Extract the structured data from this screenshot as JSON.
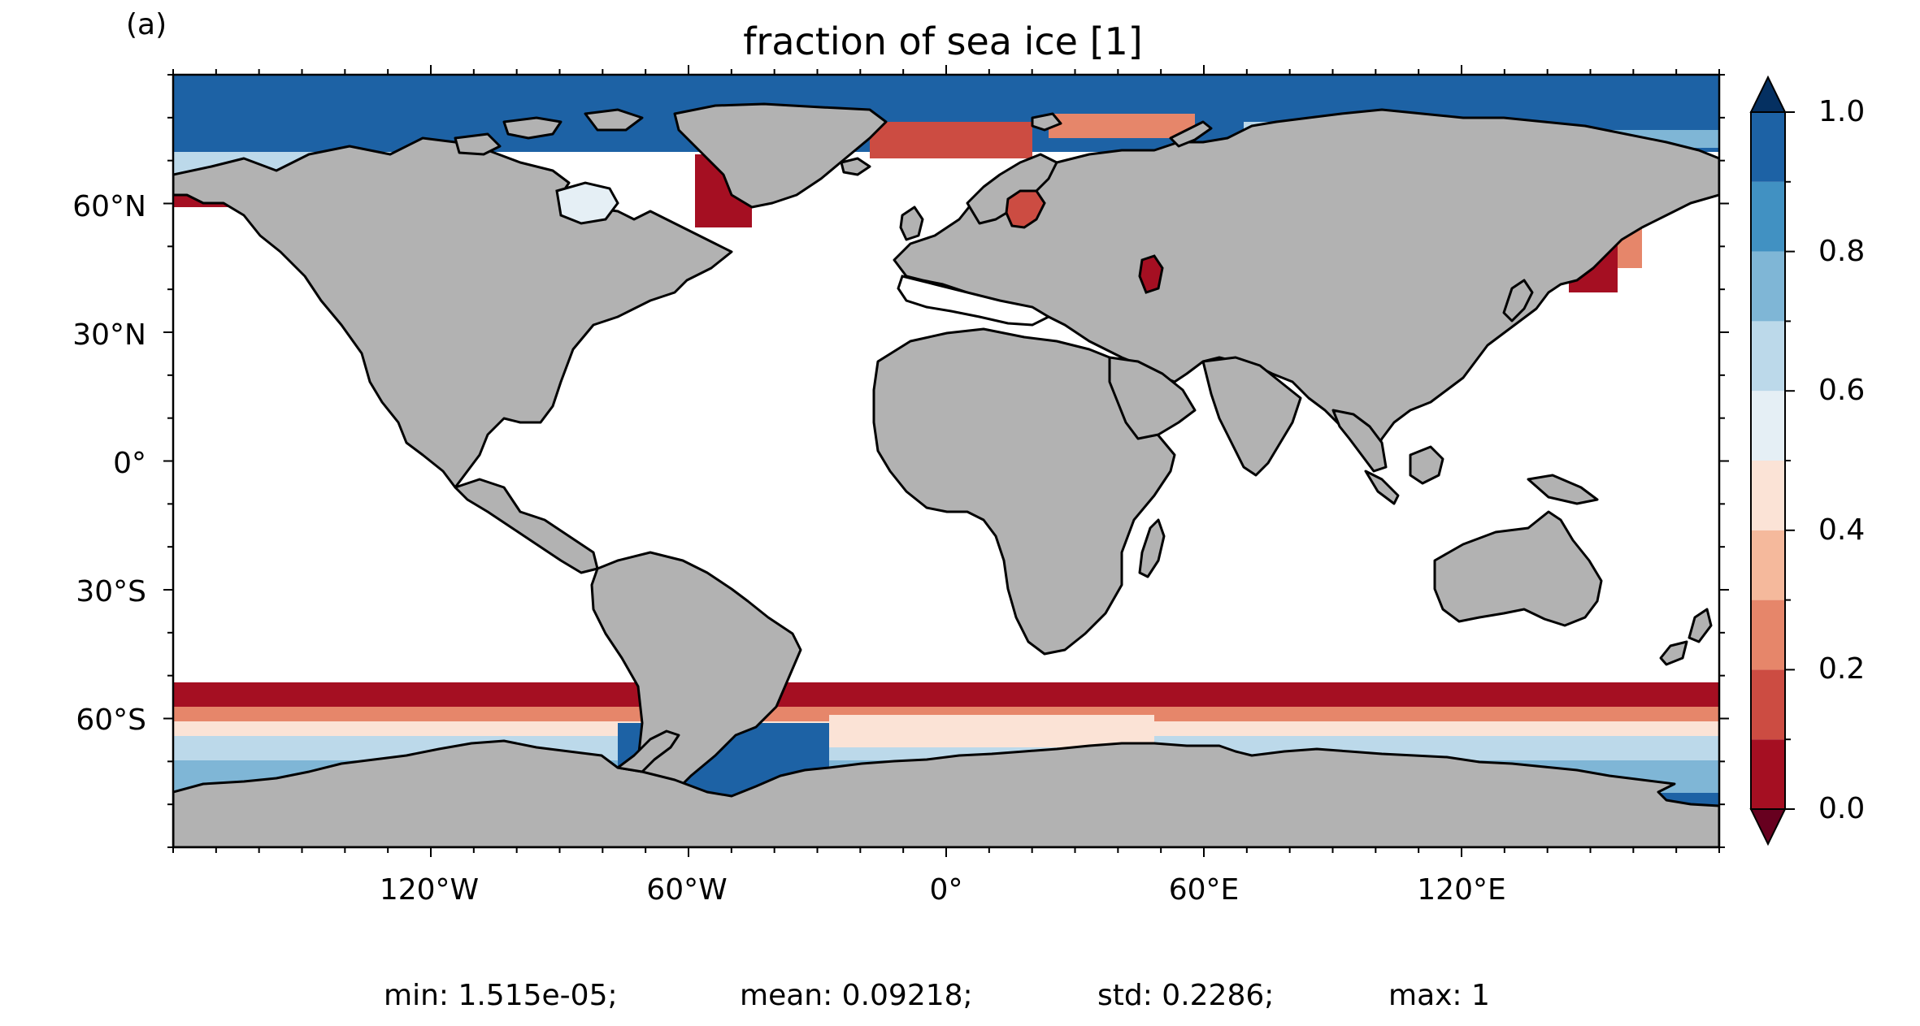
{
  "panel_label": "(a)",
  "title": "fraction of sea ice [1]",
  "map": {
    "projection": "plate-carree",
    "extent": {
      "lon": [
        -180,
        180
      ],
      "lat": [
        -90,
        90
      ]
    },
    "land_color": "#b2b2b2",
    "ocean_no_ice_color": "#ffffff",
    "coastline_color": "#000000",
    "lat_ticks": [
      {
        "value": 60,
        "label": "60°N"
      },
      {
        "value": 30,
        "label": "30°N"
      },
      {
        "value": 0,
        "label": "0°"
      },
      {
        "value": -30,
        "label": "30°S"
      },
      {
        "value": -60,
        "label": "60°S"
      }
    ],
    "lon_ticks": [
      {
        "value": -120,
        "label": "120°W"
      },
      {
        "value": -60,
        "label": "60°W"
      },
      {
        "value": 0,
        "label": "0°"
      },
      {
        "value": 60,
        "label": "60°E"
      },
      {
        "value": 120,
        "label": "120°E"
      }
    ]
  },
  "colorbar": {
    "range": [
      0.0,
      1.0
    ],
    "extend": "both",
    "colors": [
      "#a50f22",
      "#cc4c42",
      "#e6866a",
      "#f5b99c",
      "#fbe3d6",
      "#e5eff5",
      "#bcd9ea",
      "#7fb6d6",
      "#4191c2",
      "#1d62a5"
    ],
    "under_color": "#67001f",
    "over_color": "#053061",
    "ticks": [
      {
        "value": 1.0,
        "label": "1.0"
      },
      {
        "value": 0.8,
        "label": "0.8"
      },
      {
        "value": 0.6,
        "label": "0.6"
      },
      {
        "value": 0.4,
        "label": "0.4"
      },
      {
        "value": 0.2,
        "label": "0.2"
      },
      {
        "value": 0.0,
        "label": "0.0"
      }
    ]
  },
  "stats": {
    "min": "min: 1.515e-05;",
    "mean": "mean: 0.09218;",
    "std": "std: 0.2286;",
    "max": "max: 1"
  }
}
